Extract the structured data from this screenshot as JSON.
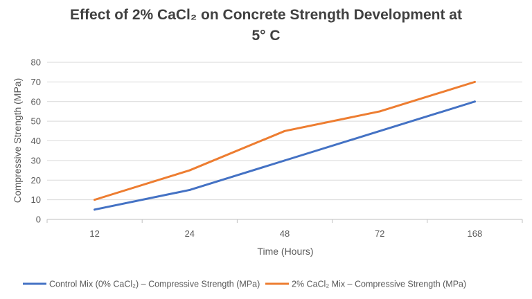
{
  "chart_data": {
    "type": "line",
    "title_line1": "Effect of 2% CaCl₂ on Concrete Strength Development at",
    "title_line2": "5° C",
    "categories": [
      "12",
      "24",
      "48",
      "72",
      "168"
    ],
    "xlabel": "Time (Hours)",
    "ylabel": "Compressive Strength (MPa)",
    "ylim": [
      0,
      80
    ],
    "yticks": [
      "0",
      "10",
      "20",
      "30",
      "40",
      "50",
      "60",
      "70",
      "80"
    ],
    "grid": true,
    "legend_position": "bottom",
    "series": [
      {
        "name": "Control Mix (0% CaCl₂) – Compressive Strength (MPa)",
        "color": "#4472C4",
        "values": [
          5,
          15,
          30,
          45,
          60
        ]
      },
      {
        "name": "2% CaCl₂ Mix – Compressive Strength (MPa)",
        "color": "#ED7D31",
        "values": [
          10,
          25,
          45,
          55,
          70
        ]
      }
    ]
  }
}
